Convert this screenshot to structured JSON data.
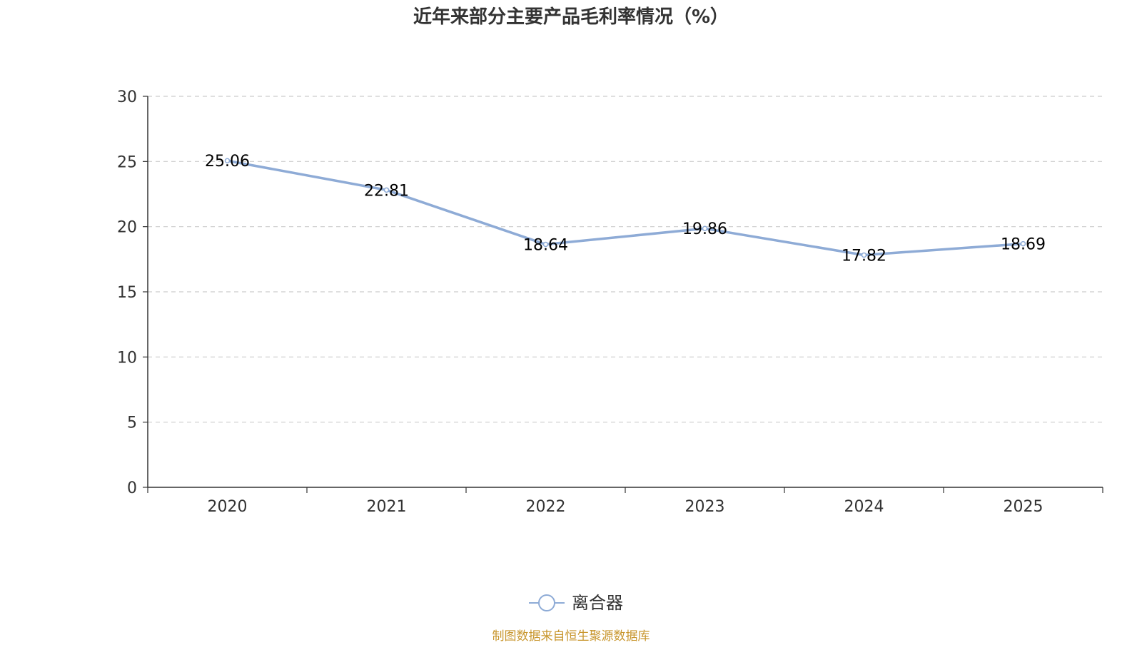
{
  "chart_data": {
    "type": "line",
    "title": "近年来部分主要产品毛利率情况（%）",
    "xlabel": "",
    "ylabel": "",
    "categories": [
      "2020",
      "2021",
      "2022",
      "2023",
      "2024",
      "2025"
    ],
    "series": [
      {
        "name": "离合器",
        "values": [
          25.06,
          22.81,
          18.64,
          19.86,
          17.82,
          18.69
        ],
        "data_labels": [
          "25.06",
          "22.81",
          "18.64",
          "19.86",
          "17.82",
          "18.69"
        ],
        "color": "#8eabd6"
      }
    ],
    "ylim": [
      0,
      30
    ],
    "yticks": [
      0,
      5,
      10,
      15,
      20,
      25,
      30
    ],
    "ytick_labels": [
      "0",
      "5",
      "10",
      "15",
      "20",
      "25",
      "30"
    ],
    "grid": true,
    "legend_position": "bottom-center"
  },
  "footer": {
    "source": "制图数据来自恒生聚源数据库"
  },
  "colors": {
    "title": "#333333",
    "axis": "#333333",
    "tick_label": "#333333",
    "grid": "#cccccc",
    "data_label": "#000000",
    "legend_text": "#333333",
    "source": "#c8962d"
  }
}
